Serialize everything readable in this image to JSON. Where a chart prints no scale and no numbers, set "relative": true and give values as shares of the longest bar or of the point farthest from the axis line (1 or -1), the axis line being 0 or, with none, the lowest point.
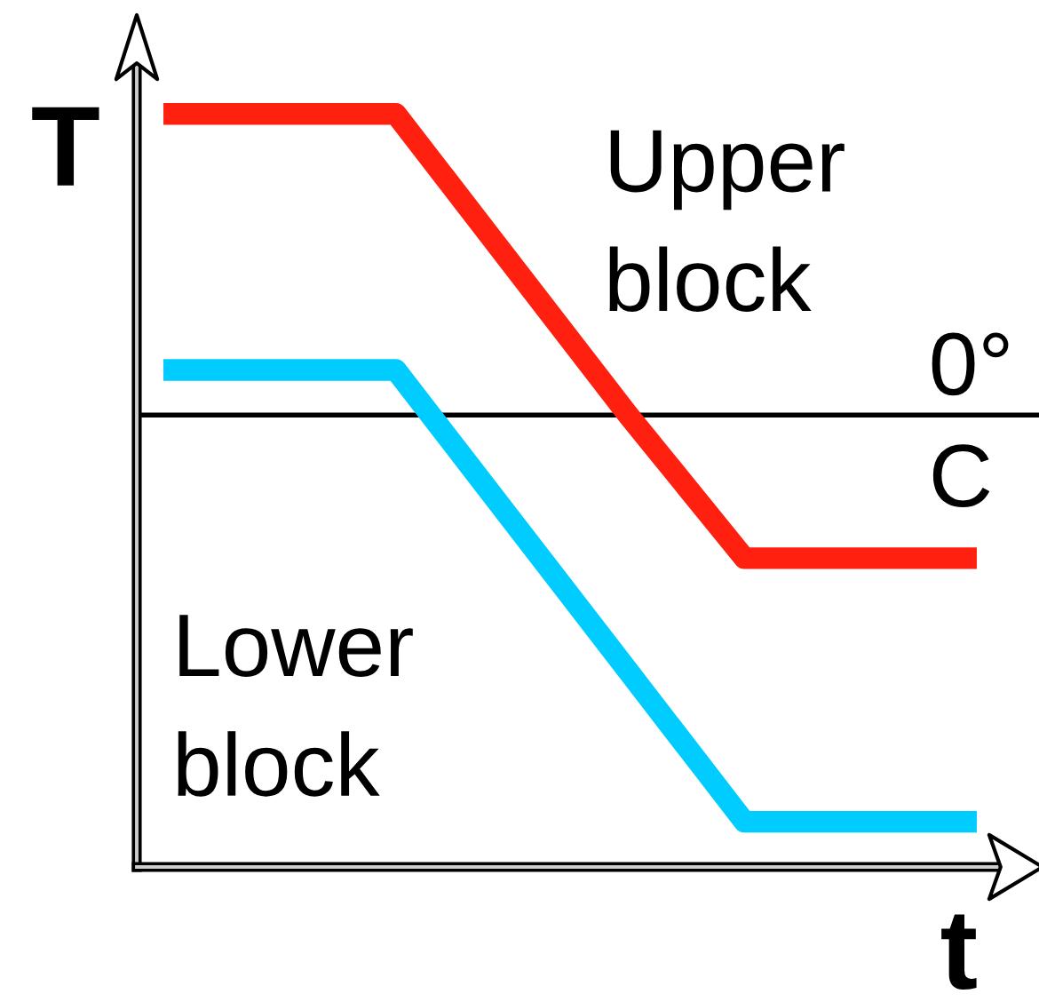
{
  "chart_data": {
    "type": "line",
    "relative": true,
    "xlabel": "t",
    "ylabel": "T",
    "categories": [
      null,
      null,
      null,
      null,
      null,
      null,
      null,
      null
    ],
    "series": [
      {
        "name": "Upper block",
        "color": "#ff2010",
        "values": [
          1,
          1,
          1,
          0.8,
          0.6,
          0.41,
          0.41,
          0.41
        ]
      },
      {
        "name": "Lower block",
        "color": "#00ccff",
        "values": [
          0.66,
          0.66,
          0.66,
          0.46,
          0.26,
          0.06,
          0.06,
          0.06
        ]
      }
    ],
    "ref_lines": [
      {
        "axis": "y",
        "value": 0.6,
        "label": "0°\nC",
        "color": "#000000"
      }
    ],
    "marker": "none",
    "line_style": "solid",
    "grid": false,
    "legend": false
  }
}
